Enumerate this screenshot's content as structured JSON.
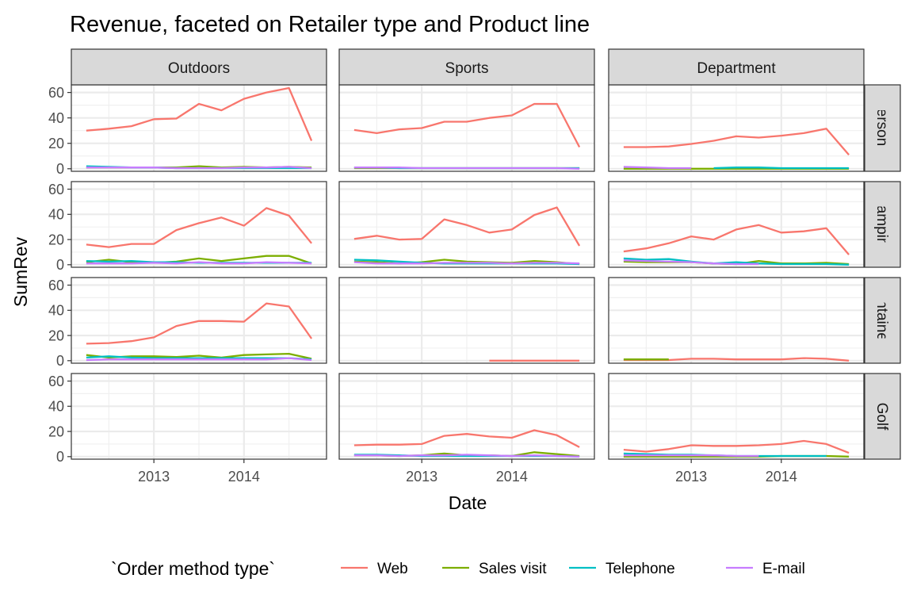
{
  "chart_data": {
    "type": "line",
    "title": "Revenue, faceted on Retailer type and Product line",
    "xlabel": "Date",
    "ylabel": "SumRev",
    "x_ticks": [
      "2013",
      "2014"
    ],
    "y_ticks": [
      0,
      20,
      40,
      60
    ],
    "ylim": [
      -2,
      66
    ],
    "xlim": [
      "2012-02",
      "2014-12"
    ],
    "grid": true,
    "legend_title": "`Order method type`",
    "legend_position": "bottom",
    "series_colors": {
      "Web": "#f8766d",
      "Sales visit": "#7cae00",
      "Telephone": "#00bfc4",
      "E-mail": "#c77cff"
    },
    "columns": [
      "Outdoors",
      "Sports",
      "Department"
    ],
    "rows": [
      "Personal",
      "Camping",
      "Mountaineering",
      "Golf"
    ],
    "row_labels_shown": [
      "Personal",
      "Camping",
      "ountaineeri",
      "Golf"
    ],
    "x": [
      "2012-04",
      "2012-07",
      "2012-10",
      "2013-01",
      "2013-04",
      "2013-07",
      "2013-10",
      "2014-01",
      "2014-04",
      "2014-07",
      "2014-10"
    ],
    "panels": [
      {
        "row": "Personal",
        "col": "Outdoors",
        "series": [
          {
            "name": "Web",
            "values": [
              30,
              31.5,
              33.5,
              39,
              39.5,
              51,
              46,
              55,
              60,
              63.5,
              22
            ]
          },
          {
            "name": "Sales visit",
            "values": [
              1,
              1,
              1,
              1,
              1,
              2,
              1,
              1.5,
              1,
              1.5,
              1
            ]
          },
          {
            "name": "Telephone",
            "values": [
              2,
              1.5,
              1,
              1,
              0.5,
              0.5,
              0.5,
              0.5,
              0.5,
              0.5,
              0.5
            ]
          },
          {
            "name": "E-mail",
            "values": [
              1,
              1,
              1,
              1,
              0.5,
              0.5,
              0.5,
              1,
              1,
              1.5,
              0.5
            ]
          }
        ]
      },
      {
        "row": "Personal",
        "col": "Sports",
        "series": [
          {
            "name": "Web",
            "values": [
              30.5,
              28,
              31,
              32,
              37,
              37,
              40,
              42,
              51,
              51,
              17
            ]
          },
          {
            "name": "Sales visit",
            "values": [
              0.5,
              0.5,
              0.5,
              0.5,
              0.5,
              0.5,
              0.5,
              0.5,
              0.5,
              0.5,
              0.5
            ]
          },
          {
            "name": "Telephone",
            "values": [
              1,
              1,
              0.5,
              0.5,
              0.5,
              0.5,
              0.5,
              0.5,
              0.5,
              0.5,
              0.5
            ]
          },
          {
            "name": "E-mail",
            "values": [
              1,
              1,
              1,
              0.5,
              0.5,
              0.5,
              0.5,
              0.5,
              0.5,
              0.5,
              0
            ]
          }
        ]
      },
      {
        "row": "Personal",
        "col": "Department",
        "series": [
          {
            "name": "Web",
            "values": [
              17,
              17,
              17.5,
              19.5,
              22,
              25.5,
              24.5,
              26,
              28,
              31.5,
              11
            ]
          },
          {
            "name": "Sales visit",
            "values": [
              0,
              0,
              0,
              0,
              0,
              0,
              0,
              0,
              0,
              0,
              0
            ]
          },
          {
            "name": "Telephone",
            "values": [
              null,
              null,
              null,
              null,
              0.5,
              1,
              1,
              0.5,
              0.5,
              0.5,
              0.5
            ]
          },
          {
            "name": "E-mail",
            "values": [
              1.5,
              1,
              0.5,
              0.5,
              null,
              null,
              null,
              null,
              null,
              null,
              null
            ]
          }
        ]
      },
      {
        "row": "Camping",
        "col": "Outdoors",
        "series": [
          {
            "name": "Web",
            "values": [
              16,
              14,
              16.5,
              16.5,
              27.5,
              33,
              37.5,
              31,
              45,
              39,
              17
            ]
          },
          {
            "name": "Sales visit",
            "values": [
              2,
              4,
              2,
              1.5,
              2.5,
              5,
              3,
              5,
              7,
              7,
              1
            ]
          },
          {
            "name": "Telephone",
            "values": [
              3,
              2.5,
              3,
              2,
              2,
              1.5,
              1.5,
              1.5,
              1.5,
              1.5,
              1.5
            ]
          },
          {
            "name": "E-mail",
            "values": [
              1,
              1,
              1,
              1.5,
              1,
              2,
              1,
              1,
              2,
              1.5,
              1
            ]
          }
        ]
      },
      {
        "row": "Camping",
        "col": "Sports",
        "series": [
          {
            "name": "Web",
            "values": [
              20.5,
              23,
              20,
              20.5,
              36,
              31.5,
              25.5,
              28,
              39.5,
              45.5,
              15
            ]
          },
          {
            "name": "Sales visit",
            "values": [
              2.5,
              2,
              1,
              2,
              4,
              2.5,
              2,
              1.5,
              3,
              2,
              0.5
            ]
          },
          {
            "name": "Telephone",
            "values": [
              4,
              3.5,
              2.5,
              1.5,
              1,
              1,
              1,
              1,
              1,
              1,
              0.5
            ]
          },
          {
            "name": "E-mail",
            "values": [
              2,
              1,
              1,
              1,
              1.5,
              1.5,
              1.5,
              1,
              1.5,
              1.5,
              1
            ]
          }
        ]
      },
      {
        "row": "Camping",
        "col": "Department",
        "series": [
          {
            "name": "Web",
            "values": [
              10.5,
              13,
              17,
              22.5,
              20,
              28,
              31.5,
              25.5,
              26.5,
              29,
              8
            ]
          },
          {
            "name": "Sales visit",
            "values": [
              2.5,
              2,
              2,
              2,
              1,
              0.5,
              3,
              1,
              1,
              1.5,
              0.5
            ]
          },
          {
            "name": "Telephone",
            "values": [
              5,
              4,
              4.5,
              2.5,
              1,
              2,
              1,
              0.5,
              0.5,
              0.5,
              0
            ]
          },
          {
            "name": "E-mail",
            "values": [
              3.5,
              3,
              2.5,
              2,
              1,
              0.5,
              0.5,
              null,
              null,
              null,
              null
            ]
          }
        ]
      },
      {
        "row": "Mountaineering",
        "col": "Outdoors",
        "series": [
          {
            "name": "Web",
            "values": [
              13.5,
              14,
              15.5,
              18.5,
              27.5,
              31.5,
              31.5,
              31,
              45.5,
              43,
              17.5
            ]
          },
          {
            "name": "Sales visit",
            "values": [
              4.5,
              2.5,
              3.5,
              3.5,
              3,
              4,
              2.5,
              4.5,
              5,
              5.5,
              1.5
            ]
          },
          {
            "name": "Telephone",
            "values": [
              2.5,
              3.5,
              2.5,
              2,
              2,
              2,
              2,
              2,
              2,
              2,
              1
            ]
          },
          {
            "name": "E-mail",
            "values": [
              0.5,
              1,
              1,
              1,
              1,
              1,
              1,
              1,
              1,
              2,
              0.5
            ]
          }
        ]
      },
      {
        "row": "Mountaineering",
        "col": "Sports",
        "series": [
          {
            "name": "Web",
            "values": [
              null,
              null,
              null,
              null,
              null,
              null,
              0,
              0,
              0,
              0,
              0
            ]
          }
        ]
      },
      {
        "row": "Mountaineering",
        "col": "Department",
        "series": [
          {
            "name": "Web",
            "values": [
              0.5,
              0.5,
              0.5,
              1.5,
              1.5,
              1,
              1,
              1,
              2,
              1.5,
              0
            ]
          },
          {
            "name": "Sales visit",
            "values": [
              1,
              1,
              1,
              null,
              null,
              null,
              null,
              null,
              null,
              null,
              null
            ]
          }
        ]
      },
      {
        "row": "Golf",
        "col": "Outdoors",
        "series": []
      },
      {
        "row": "Golf",
        "col": "Sports",
        "series": [
          {
            "name": "Web",
            "values": [
              9,
              9.5,
              9.5,
              10,
              16.5,
              18,
              16,
              15,
              21,
              17,
              7.5
            ]
          },
          {
            "name": "Sales visit",
            "values": [
              1,
              1,
              0.5,
              1,
              2.5,
              1,
              1,
              0.5,
              3.5,
              2,
              0.5
            ]
          },
          {
            "name": "Telephone",
            "values": [
              1.5,
              1.5,
              1,
              0.5,
              0.5,
              0.5,
              0.5,
              0.5,
              0.5,
              0.5,
              0
            ]
          },
          {
            "name": "E-mail",
            "values": [
              1,
              1,
              0.5,
              1,
              1,
              1.5,
              1,
              0.5,
              1,
              0.5,
              0
            ]
          }
        ]
      },
      {
        "row": "Golf",
        "col": "Department",
        "series": [
          {
            "name": "Web",
            "values": [
              5.5,
              4,
              6,
              9,
              8.5,
              8.5,
              9,
              10,
              12.5,
              10,
              3
            ]
          },
          {
            "name": "Sales visit",
            "values": [
              0,
              0,
              0,
              0,
              0,
              0,
              0,
              0.5,
              0.5,
              0.5,
              0
            ]
          },
          {
            "name": "Telephone",
            "values": [
              2.5,
              2,
              1.5,
              1.5,
              1,
              0.5,
              0.5,
              0.5,
              0.5,
              0.5,
              null
            ]
          },
          {
            "name": "E-mail",
            "values": [
              1,
              1,
              1,
              1,
              1,
              0.5,
              0.5,
              null,
              null,
              null,
              null
            ]
          }
        ]
      }
    ]
  }
}
